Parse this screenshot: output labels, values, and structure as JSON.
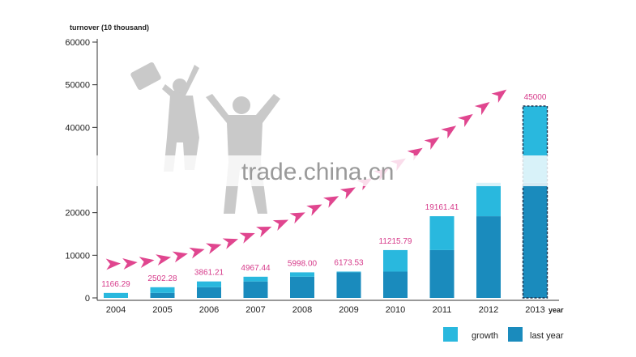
{
  "chart_data": {
    "type": "bar",
    "ylabel": "turnover (10 thousand)",
    "xlabel": "year",
    "ylim": [
      0,
      60000
    ],
    "yticks": [
      0,
      10000,
      20000,
      40000,
      50000,
      60000
    ],
    "categories": [
      "2004",
      "2005",
      "2006",
      "2007",
      "2008",
      "2009",
      "2010",
      "2011",
      "2012",
      "2013"
    ],
    "values": [
      1166.29,
      2502.28,
      3861.21,
      4967.44,
      5998.0,
      6173.53,
      11215.79,
      19161.41,
      null,
      45000
    ],
    "value_labels": [
      "1166.29",
      "2502.28",
      "3861.21",
      "4967.44",
      "5998.00",
      "6173.53",
      "11215.79",
      "19161.41",
      "",
      "45000"
    ],
    "series": [
      {
        "name": "last year",
        "values": [
          0,
          1166.29,
          2502.28,
          3861.21,
          4967.44,
          5998.0,
          6173.53,
          11215.79,
          19161.41,
          27000
        ]
      },
      {
        "name": "growth",
        "values": [
          1166.29,
          1335.99,
          1358.93,
          1106.23,
          1030.56,
          175.53,
          5042.26,
          7945.62,
          7838.59,
          18000
        ]
      }
    ],
    "legend": {
      "position": "bottom-right",
      "growth_label": "growth",
      "last_label": "last year"
    },
    "colors": {
      "growth": "#29b8de",
      "last_year": "#1a8bbd",
      "data_label": "#d63a8a",
      "arrow": "#e0468f"
    },
    "watermark": "trade.china.cn"
  }
}
